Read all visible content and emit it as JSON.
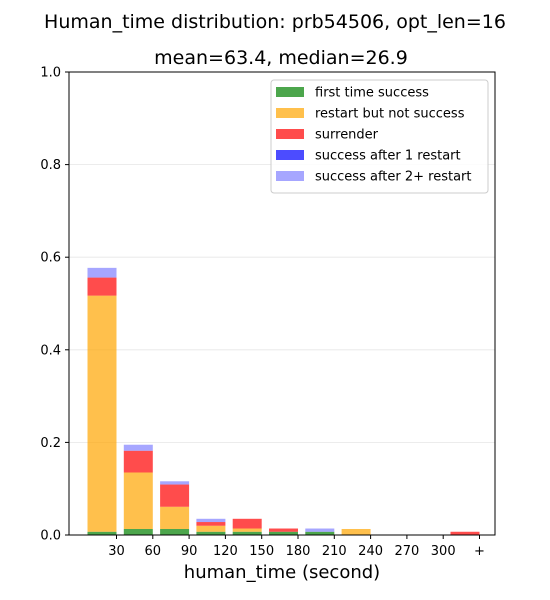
{
  "chart_data": {
    "type": "bar",
    "stacked": true,
    "title": "Human_time distribution: prb54506, opt_len=16",
    "subtitle": "mean=63.4, median=26.9",
    "xlabel": "human_time (second)",
    "ylabel": "",
    "ylim": [
      0,
      1.0
    ],
    "yticks": [
      0.0,
      0.2,
      0.4,
      0.6,
      0.8,
      1.0
    ],
    "ytick_labels": [
      "0.0",
      "0.2",
      "0.4",
      "0.6",
      "0.8",
      "1.0"
    ],
    "xtick_labels": [
      "30",
      "60",
      "90",
      "120",
      "150",
      "180",
      "210",
      "240",
      "270",
      "300",
      "+"
    ],
    "categories": [
      "0-30",
      "30-60",
      "60-90",
      "90-120",
      "120-150",
      "150-180",
      "180-210",
      "210-240",
      "240-270",
      "270-300",
      "300+"
    ],
    "grid": "horizontal",
    "legend_position": "top-right",
    "series": [
      {
        "name": "first time success",
        "color": "#008000",
        "values": [
          0.007,
          0.013,
          0.013,
          0.007,
          0.007,
          0.007,
          0.007,
          0.0,
          0.0,
          0.0,
          0.0
        ]
      },
      {
        "name": "restart but not success",
        "color": "#ffa500",
        "values": [
          0.51,
          0.122,
          0.048,
          0.013,
          0.007,
          0.0,
          0.0,
          0.013,
          0.0,
          0.0,
          0.0
        ]
      },
      {
        "name": "surrender",
        "color": "#ff0000",
        "values": [
          0.039,
          0.047,
          0.048,
          0.008,
          0.021,
          0.007,
          0.0,
          0.0,
          0.0,
          0.0,
          0.007
        ]
      },
      {
        "name": "success after 1 restart",
        "color": "#0000ff",
        "values": [
          0.0,
          0.0,
          0.0,
          0.0,
          0.0,
          0.0,
          0.0,
          0.0,
          0.0,
          0.0,
          0.0
        ]
      },
      {
        "name": "success after 2+ restart",
        "color": "#8080ff",
        "values": [
          0.021,
          0.013,
          0.007,
          0.007,
          0.0,
          0.0,
          0.007,
          0.0,
          0.0,
          0.0,
          0.0
        ]
      }
    ]
  }
}
